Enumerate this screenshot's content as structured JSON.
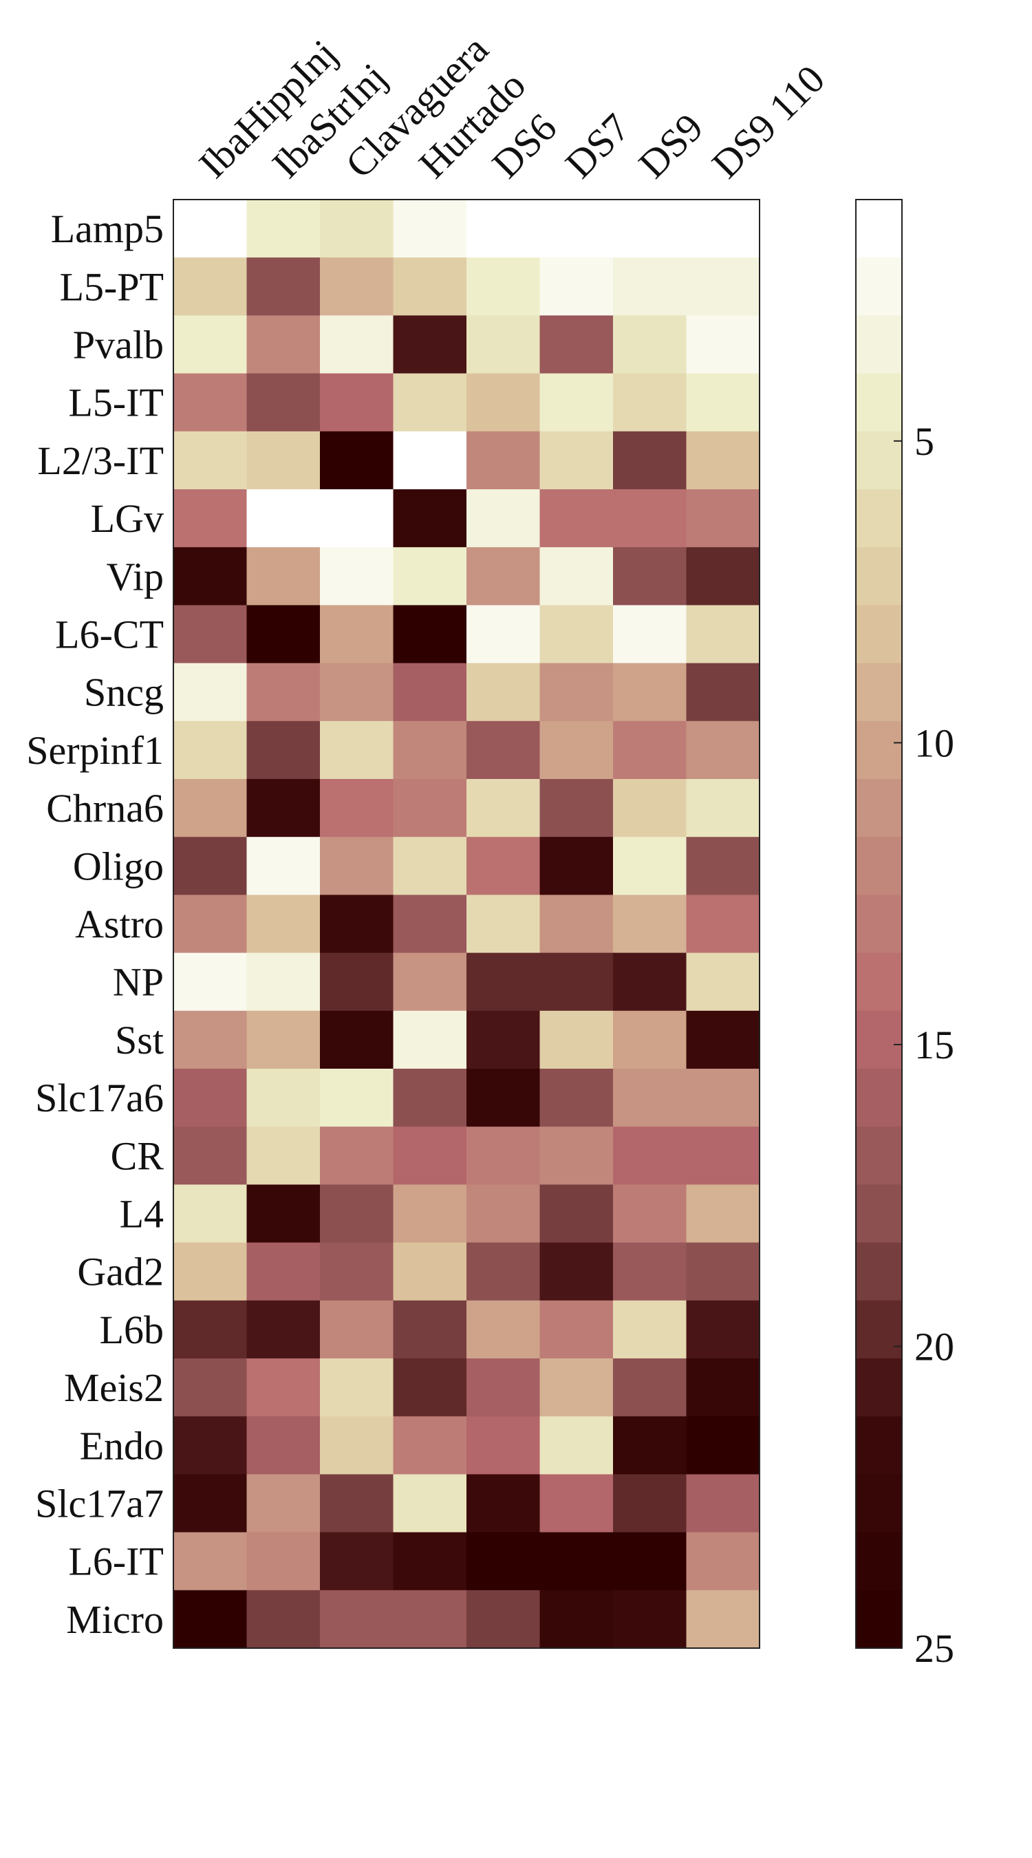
{
  "chart_data": {
    "type": "heatmap",
    "columns": [
      "IbaHippInj",
      "IbaStrInj",
      "Clavaguera",
      "Hurtado",
      "DS6",
      "DS7",
      "DS9",
      "DS9 110"
    ],
    "rows": [
      "Lamp5",
      "L5-PT",
      "Pvalb",
      "L5-IT",
      "L2/3-IT",
      "LGv",
      "Vip",
      "L6-CT",
      "Sncg",
      "Serpinf1",
      "Chrna6",
      "Oligo",
      "Astro",
      "NP",
      "Sst",
      "Slc17a6",
      "CR",
      "L4",
      "Gad2",
      "L6b",
      "Meis2",
      "Endo",
      "Slc17a7",
      "L6-IT",
      "Micro"
    ],
    "values": [
      [
        1,
        4,
        5,
        2,
        1,
        1,
        1,
        1
      ],
      [
        7,
        18,
        9,
        7,
        4,
        2,
        3,
        3
      ],
      [
        4,
        12,
        3,
        21,
        5,
        17,
        5,
        2
      ],
      [
        13,
        18,
        15,
        6,
        8,
        4,
        6,
        4
      ],
      [
        6,
        7,
        25,
        1,
        12,
        6,
        19,
        8
      ],
      [
        14,
        1,
        1,
        23,
        3,
        14,
        14,
        13
      ],
      [
        23,
        10,
        2,
        4,
        11,
        3,
        18,
        20
      ],
      [
        17,
        25,
        10,
        25,
        2,
        6,
        2,
        6
      ],
      [
        3,
        13,
        11,
        16,
        7,
        11,
        10,
        19
      ],
      [
        6,
        19,
        6,
        12,
        17,
        10,
        13,
        11
      ],
      [
        10,
        22,
        14,
        13,
        6,
        18,
        7,
        5
      ],
      [
        19,
        2,
        11,
        6,
        14,
        22,
        4,
        18
      ],
      [
        12,
        8,
        22,
        17,
        6,
        11,
        9,
        14
      ],
      [
        2,
        3,
        20,
        11,
        20,
        20,
        21,
        6
      ],
      [
        11,
        9,
        23,
        3,
        21,
        7,
        10,
        22
      ],
      [
        16,
        5,
        4,
        18,
        23,
        18,
        11,
        11
      ],
      [
        17,
        6,
        13,
        15,
        13,
        12,
        15,
        15
      ],
      [
        5,
        23,
        18,
        10,
        12,
        19,
        13,
        9
      ],
      [
        8,
        16,
        17,
        8,
        18,
        21,
        17,
        18
      ],
      [
        20,
        21,
        12,
        19,
        10,
        13,
        6,
        21
      ],
      [
        18,
        14,
        6,
        20,
        16,
        9,
        18,
        23
      ],
      [
        21,
        16,
        7,
        13,
        15,
        5,
        23,
        25
      ],
      [
        22,
        11,
        19,
        5,
        22,
        15,
        20,
        16
      ],
      [
        11,
        12,
        21,
        22,
        25,
        25,
        25,
        12
      ],
      [
        25,
        19,
        17,
        17,
        19,
        23,
        22,
        9
      ]
    ],
    "colorbar": {
      "min": 1,
      "max": 25,
      "ticks": [
        5,
        10,
        15,
        20,
        25
      ]
    },
    "colormap": [
      "#ffffff",
      "#ecebc4",
      "#dcc49d",
      "#c58f7f",
      "#b7696c",
      "#8a4f50",
      "#3d0a0a",
      "#2e0000"
    ]
  }
}
